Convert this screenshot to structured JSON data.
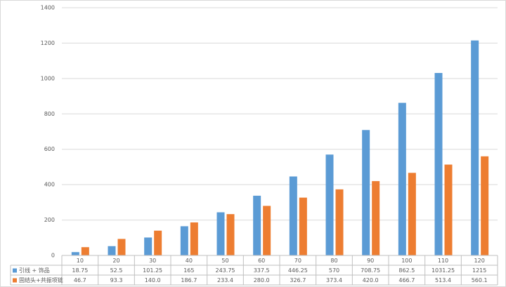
{
  "chart_data": {
    "type": "bar",
    "categories": [
      "10",
      "20",
      "30",
      "40",
      "50",
      "60",
      "70",
      "80",
      "90",
      "100",
      "110",
      "120"
    ],
    "series": [
      {
        "name": "引线 + 饰品",
        "color": "#5b9bd5",
        "values": [
          18.75,
          52.5,
          101.25,
          165,
          243.75,
          337.5,
          446.25,
          570,
          708.75,
          862.5,
          1031.25,
          1215
        ]
      },
      {
        "name": "固结头+共振项链",
        "color": "#ed7d31",
        "values": [
          46.7,
          93.3,
          140,
          186.7,
          233.4,
          280,
          326.7,
          373.4,
          420,
          466.7,
          513.4,
          560.1
        ],
        "value_labels": [
          "46.7",
          "93.3",
          "140.0",
          "186.7",
          "233.4",
          "280.0",
          "326.7",
          "373.4",
          "420.0",
          "466.7",
          "513.4",
          "560.1"
        ]
      }
    ],
    "ylim": [
      0,
      1400
    ],
    "yticks": [
      0,
      200,
      400,
      600,
      800,
      1000,
      1200,
      1400
    ],
    "grid": true
  }
}
